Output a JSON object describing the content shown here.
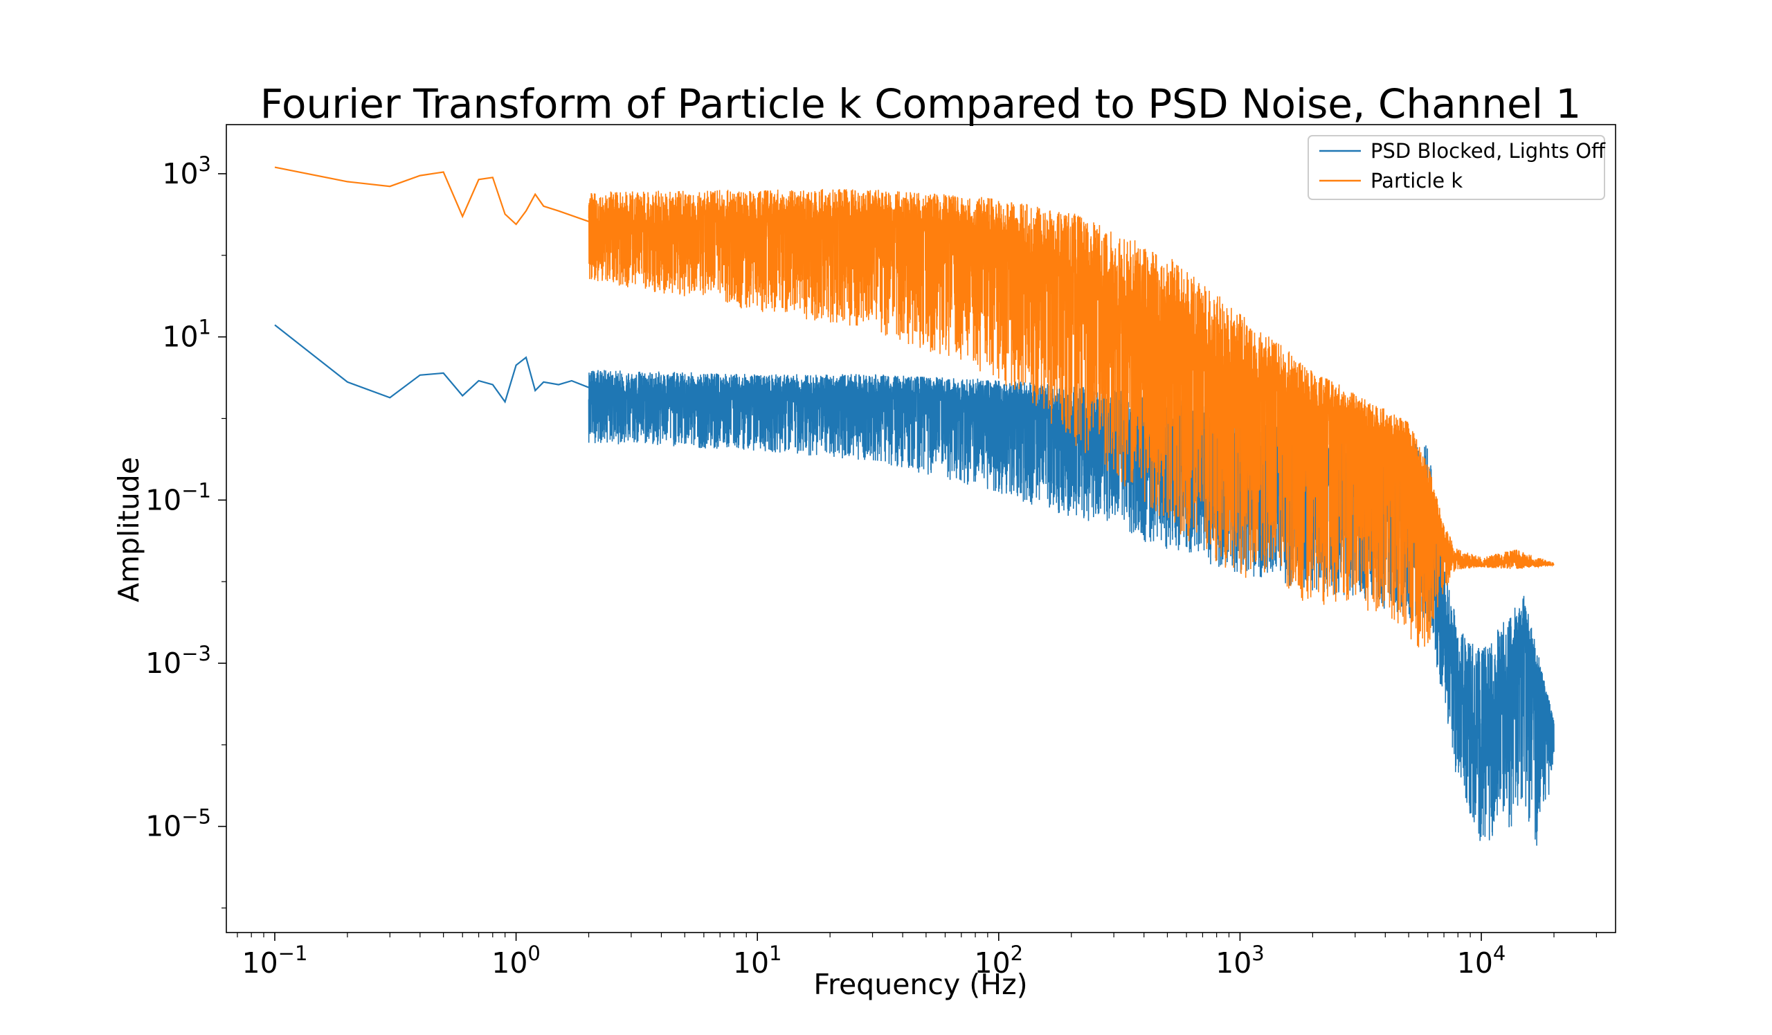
{
  "chart_data": {
    "type": "line",
    "title": "Fourier Transform of Particle k Compared to PSD Noise, Channel 1",
    "xlabel": "Frequency (Hz)",
    "ylabel": "Amplitude",
    "xscale": "log",
    "yscale": "log",
    "xlim": [
      0.063,
      36000
    ],
    "ylim": [
      5e-07,
      4000
    ],
    "xticks": [
      {
        "value": 0.1,
        "base": "10",
        "exp": "−1"
      },
      {
        "value": 1,
        "base": "10",
        "exp": "0"
      },
      {
        "value": 10,
        "base": "10",
        "exp": "1"
      },
      {
        "value": 100,
        "base": "10",
        "exp": "2"
      },
      {
        "value": 1000,
        "base": "10",
        "exp": "3"
      },
      {
        "value": 10000,
        "base": "10",
        "exp": "4"
      }
    ],
    "yticks": [
      {
        "value": 1e-05,
        "base": "10",
        "exp": "−5"
      },
      {
        "value": 0.001,
        "base": "10",
        "exp": "−3"
      },
      {
        "value": 0.1,
        "base": "10",
        "exp": "−1"
      },
      {
        "value": 10,
        "base": "10",
        "exp": "1"
      },
      {
        "value": 1000,
        "base": "10",
        "exp": "3"
      }
    ],
    "grid": false,
    "legend_position": "top-right",
    "series": [
      {
        "name": "PSD Blocked, Lights Off",
        "color": "#1f77b4",
        "x": [
          0.1,
          0.2,
          0.3,
          0.4,
          0.5,
          0.6,
          0.7,
          0.8,
          0.9,
          1.0,
          1.1,
          1.2,
          1.3,
          1.5,
          1.7,
          2,
          3,
          5,
          10,
          20,
          30,
          50,
          100,
          200,
          500,
          1000,
          2000,
          3000,
          5000,
          6000,
          7000,
          8000,
          10000,
          12000,
          15000,
          17000,
          20000
        ],
        "y": [
          14,
          2.8,
          1.8,
          3.4,
          3.6,
          1.9,
          2.9,
          2.6,
          1.6,
          4.5,
          5.6,
          2.2,
          2.8,
          2.6,
          2.9,
          2.4,
          2.1,
          2.0,
          2.0,
          2.0,
          2.0,
          2.0,
          1.6,
          1.1,
          0.6,
          0.35,
          0.2,
          0.15,
          0.1,
          0.03,
          0.003,
          0.0005,
          8e-05,
          0.00025,
          0.004,
          0.0007,
          0.00018
        ],
        "envelope": {
          "x": [
            2,
            10,
            30,
            100,
            300,
            1000,
            3000,
            6000,
            7000,
            8000,
            10000,
            13000,
            15000,
            17000,
            20000
          ],
          "upper": [
            4,
            3.5,
            3.5,
            3,
            2.3,
            1.3,
            0.7,
            0.5,
            0.02,
            0.003,
            0.0015,
            0.004,
            0.007,
            0.0015,
            0.0002
          ],
          "lower": [
            0.5,
            0.4,
            0.3,
            0.12,
            0.04,
            0.012,
            0.006,
            0.003,
            0.0003,
            3e-05,
            6e-06,
            8e-06,
            2e-05,
            4e-06,
            5e-05
          ]
        }
      },
      {
        "name": "Particle k",
        "color": "#ff7f0e",
        "x": [
          0.1,
          0.2,
          0.3,
          0.4,
          0.5,
          0.6,
          0.7,
          0.8,
          0.9,
          1.0,
          1.1,
          1.2,
          1.3,
          1.5,
          2,
          3,
          5,
          10,
          20,
          30,
          50,
          100,
          200,
          500,
          1000,
          2000,
          3000,
          5000,
          6000,
          7000,
          8000,
          10000,
          14000,
          17000,
          20000
        ],
        "y": [
          1200,
          800,
          700,
          950,
          1050,
          300,
          850,
          900,
          320,
          240,
          350,
          560,
          400,
          350,
          260,
          220,
          230,
          250,
          270,
          280,
          240,
          150,
          60,
          12,
          3,
          1.3,
          0.9,
          0.5,
          0.15,
          0.03,
          0.018,
          0.016,
          0.018,
          0.016,
          0.016
        ],
        "envelope": {
          "x": [
            2,
            10,
            30,
            100,
            200,
            500,
            1000,
            2000,
            4000,
            5000,
            6000,
            7000,
            8000,
            10000,
            14000,
            20000
          ],
          "upper": [
            600,
            650,
            650,
            500,
            350,
            100,
            20,
            4,
            1.3,
            0.9,
            0.3,
            0.05,
            0.025,
            0.02,
            0.025,
            0.017
          ],
          "lower": [
            50,
            20,
            12,
            3,
            0.5,
            0.05,
            0.01,
            0.005,
            0.004,
            0.002,
            0.001,
            0.008,
            0.014,
            0.015,
            0.014,
            0.016
          ]
        }
      }
    ]
  }
}
